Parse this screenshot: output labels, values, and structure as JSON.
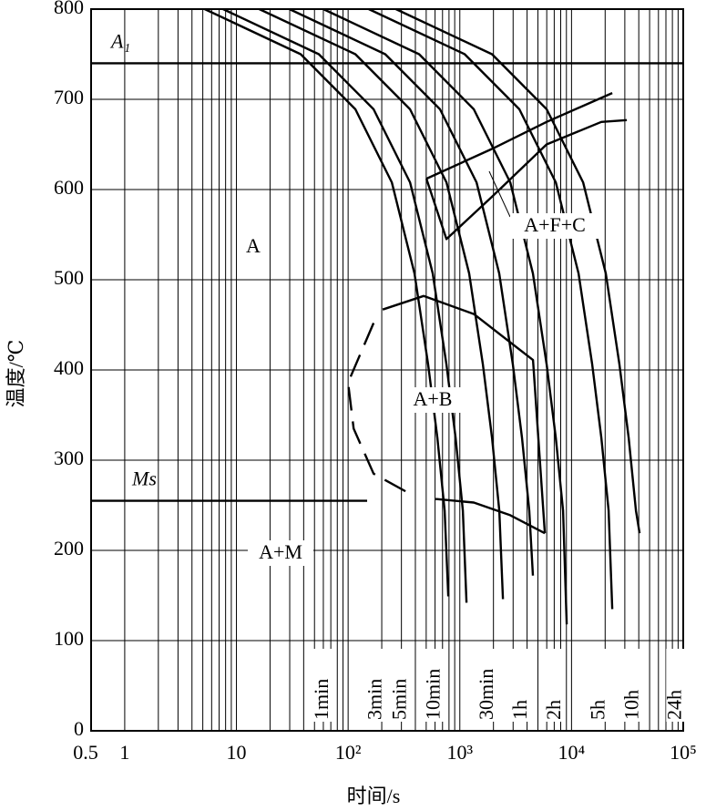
{
  "chart_data": {
    "type": "cct",
    "x_label": "时间/s",
    "y_label": "温度/℃",
    "xlog": true,
    "xlim": [
      0.5,
      100000
    ],
    "ylim": [
      0,
      800
    ],
    "xticks": [
      0.5,
      1,
      10,
      {
        "value": 100,
        "label": "10²"
      },
      {
        "value": 1000,
        "label": "10³"
      },
      {
        "value": 10000,
        "label": "10⁴"
      },
      {
        "value": 100000,
        "label": "10⁵"
      }
    ],
    "yticks": [
      0,
      100,
      200,
      300,
      400,
      500,
      600,
      700,
      800
    ],
    "x_minor_grid": [
      2,
      3,
      4,
      5,
      6,
      7,
      8,
      9,
      20,
      30,
      40,
      50,
      60,
      70,
      80,
      90,
      200,
      300,
      400,
      500,
      600,
      700,
      800,
      900,
      2000,
      3000,
      4000,
      5000,
      6000,
      7000,
      8000,
      9000,
      20000,
      30000,
      40000,
      50000,
      60000,
      70000,
      80000,
      90000
    ],
    "grid": true,
    "color": "#000000",
    "time_marks": [
      {
        "value": 60,
        "label": "1min"
      },
      {
        "value": 180,
        "label": "3min"
      },
      {
        "value": 300,
        "label": "5min"
      },
      {
        "value": 600,
        "label": "10min"
      },
      {
        "value": 1800,
        "label": "30min"
      },
      {
        "value": 3600,
        "label": "1h"
      },
      {
        "value": 7200,
        "label": "2h"
      },
      {
        "value": 18000,
        "label": "5h"
      },
      {
        "value": 36000,
        "label": "10h"
      },
      {
        "value": 86400,
        "label": "24h"
      }
    ],
    "hlines": [
      {
        "label": "A₁",
        "value": 740,
        "x": [
          0.5,
          100000
        ]
      },
      {
        "label": "Ms",
        "value": 255,
        "x": [
          0.5,
          148
        ]
      }
    ],
    "cooling_curves": [
      {
        "x": [
          5.2,
          37.6,
          116,
          246,
          393,
          521,
          629,
          731,
          788
        ],
        "y": [
          800,
          750,
          689,
          608,
          507,
          406,
          325,
          244,
          149
        ]
      },
      {
        "x": [
          7.6,
          54.7,
          169,
          358,
          572,
          759,
          916,
          1064,
          1147
        ],
        "y": [
          800,
          750,
          689,
          608,
          507,
          406,
          325,
          244,
          142
        ]
      },
      {
        "x": [
          16,
          116,
          358,
          759,
          1213,
          1608,
          1942,
          2257,
          2433
        ],
        "y": [
          800,
          750,
          689,
          608,
          507,
          406,
          325,
          244,
          146
        ]
      },
      {
        "x": [
          29.8,
          215,
          665,
          1410,
          2252,
          2985,
          3604,
          4189,
          4515
        ],
        "y": [
          800,
          750,
          689,
          608,
          507,
          406,
          325,
          244,
          172
        ]
      },
      {
        "x": [
          60,
          432,
          1333,
          2827,
          4516,
          5986,
          7227,
          8399,
          9054
        ],
        "y": [
          800,
          750,
          689,
          608,
          507,
          406,
          325,
          244,
          118
        ]
      },
      {
        "x": [
          153,
          1105,
          3410,
          7232,
          11554,
          15317,
          18493,
          21491,
          23167
        ],
        "y": [
          800,
          750,
          689,
          608,
          507,
          406,
          325,
          244,
          135
        ]
      },
      {
        "x": [
          268,
          1940,
          5986,
          12694,
          20279,
          26884,
          32456,
          37720,
          40661
        ],
        "y": [
          800,
          750,
          689,
          608,
          507,
          406,
          325,
          244,
          219
        ]
      }
    ],
    "phase_boundaries": [
      {
        "x": [
          502,
          1941,
          5985,
          23165
        ],
        "y": [
          612,
          645,
          675,
          707
        ],
        "dashed": false
      },
      {
        "x": [
          502,
          759,
          1941,
          5985,
          18490,
          31275
        ],
        "y": [
          612,
          545,
          592,
          650,
          675,
          677
        ],
        "dashed": false
      },
      {
        "x": [
          204,
          474,
          1333,
          4518,
          5765
        ],
        "y": [
          467,
          482,
          462,
          411,
          219
        ],
        "dashed": false
      },
      {
        "x": [
          606,
          1333,
          2825,
          5765
        ],
        "y": [
          257,
          253,
          239,
          219
        ],
        "dashed": false
      },
      {
        "x": [
          169,
          100,
          112,
          169,
          393
        ],
        "y": [
          452,
          386,
          335,
          285,
          260
        ],
        "dashed": true
      }
    ],
    "regions": [
      "A",
      "A+F+C",
      "A+B",
      "A+M"
    ]
  }
}
